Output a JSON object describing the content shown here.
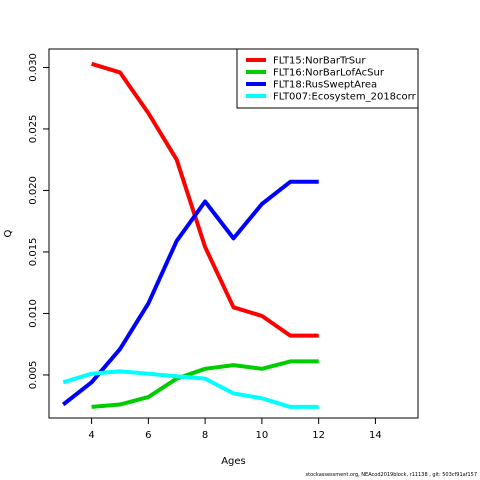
{
  "chart_data": {
    "type": "line",
    "title": "",
    "xlabel": "Ages",
    "ylabel": "Q",
    "xlim": [
      2.5,
      15.5
    ],
    "ylim": [
      0.0015,
      0.0315
    ],
    "x_ticks": [
      4,
      6,
      8,
      10,
      12,
      14
    ],
    "y_ticks": [
      0.005,
      0.01,
      0.015,
      0.02,
      0.025,
      0.03
    ],
    "y_tick_labels": [
      "0.005",
      "0.010",
      "0.015",
      "0.020",
      "0.025",
      "0.030"
    ],
    "grid": false,
    "legend_position": "top-right",
    "series": [
      {
        "name": "FLT15:NorBarTrSur",
        "color": "#ff0000",
        "x": [
          4,
          5,
          6,
          7,
          8,
          9,
          10,
          11,
          12
        ],
        "values": [
          0.0303,
          0.0296,
          0.0263,
          0.0225,
          0.0154,
          0.0105,
          0.0098,
          0.0082,
          0.0082
        ]
      },
      {
        "name": "FLT16:NorBarLofAcSur",
        "color": "#00cd00",
        "x": [
          4,
          5,
          6,
          7,
          8,
          9,
          10,
          11,
          12
        ],
        "values": [
          0.0024,
          0.0026,
          0.0032,
          0.0047,
          0.0055,
          0.0058,
          0.0055,
          0.0061,
          0.0061
        ]
      },
      {
        "name": "FLT18:RusSweptArea",
        "color": "#0000ff",
        "x": [
          3,
          4,
          5,
          6,
          7,
          8,
          9,
          10,
          11,
          12
        ],
        "values": [
          0.0026,
          0.0044,
          0.0071,
          0.0108,
          0.0159,
          0.0191,
          0.0161,
          0.0189,
          0.0207,
          0.0207
        ]
      },
      {
        "name": "FLT007:Ecosystem_2018corr",
        "color": "#00ffff",
        "x": [
          3,
          4,
          5,
          6,
          7,
          8,
          9,
          10,
          11,
          12
        ],
        "values": [
          0.0044,
          0.0051,
          0.0053,
          0.0051,
          0.0049,
          0.0047,
          0.0035,
          0.0031,
          0.0024,
          0.0024
        ]
      }
    ]
  },
  "footer_text": "stockassessment.org, NEAcod2019block, r11138 , git: 503cf91af157"
}
